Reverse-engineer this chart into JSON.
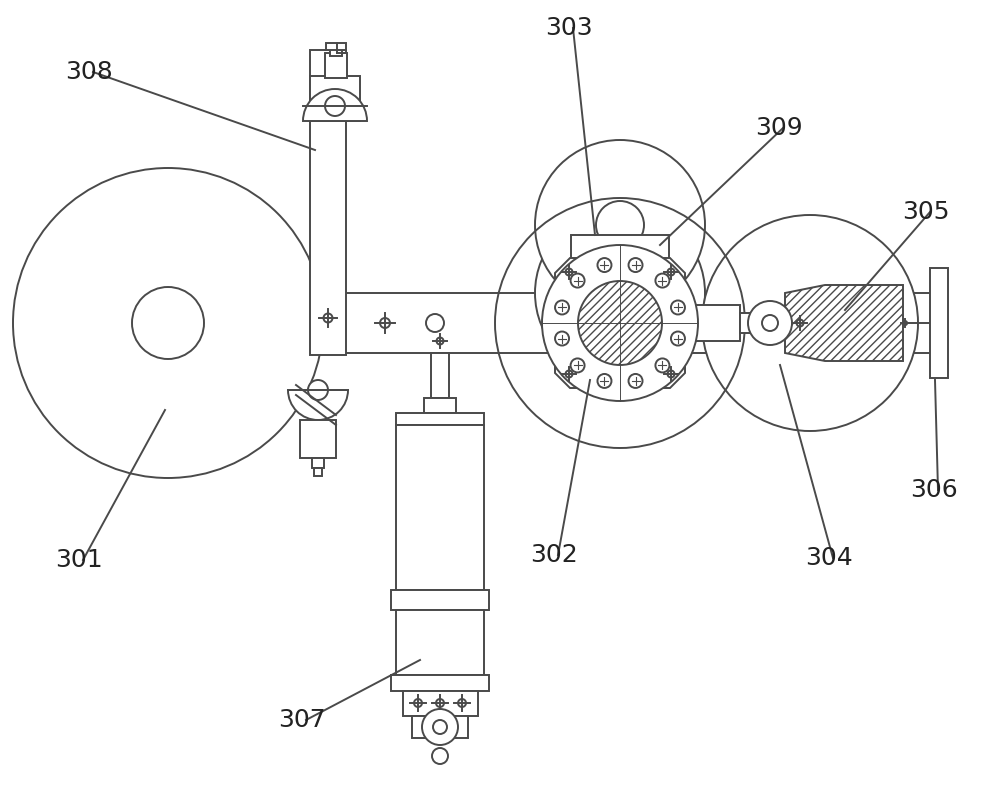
{
  "bg_color": "#ffffff",
  "lc": "#4a4a4a",
  "lw": 1.4,
  "label_fontsize": 18,
  "label_color": "#222222",
  "figsize": [
    10.0,
    8.07
  ]
}
